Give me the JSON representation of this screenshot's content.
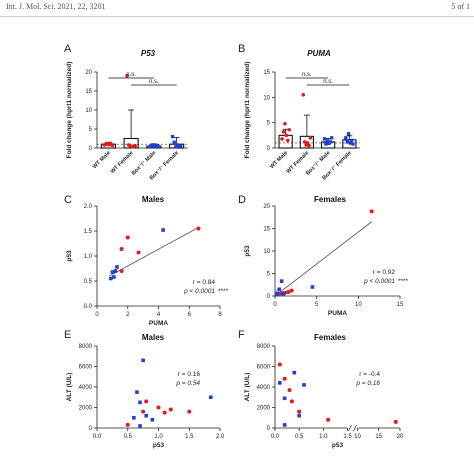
{
  "page_header": {
    "journal": "Int. J. Mol. Sci. 2021, 22, 3201",
    "page": "5 of 1"
  },
  "panels": {
    "A": {
      "letter": "A",
      "title": "P53"
    },
    "B": {
      "letter": "B",
      "title": "PUMA"
    },
    "C": {
      "letter": "C",
      "title": "Males"
    },
    "D": {
      "letter": "D",
      "title": "Females"
    },
    "E": {
      "letter": "E",
      "title": "Males"
    },
    "F": {
      "letter": "F",
      "title": "Females"
    }
  },
  "colors": {
    "male_wt": "#e31a1c",
    "female_wt": "#e31a1c",
    "male_box": "#1f3fd6",
    "female_box": "#1f3fd6",
    "line": "#555555"
  },
  "chart_data": [
    {
      "id": "A",
      "type": "bar",
      "title": "P53",
      "ylabel": "Fold change (hprt1 normalized)",
      "ylim": [
        0,
        20
      ],
      "yticks": [
        0,
        5,
        10,
        15,
        20
      ],
      "categories": [
        "WT Male",
        "WT Female",
        "Box⁻/⁻ Male",
        "Box⁻/⁻ Female"
      ],
      "values": [
        1.0,
        2.5,
        0.5,
        1.0
      ],
      "errors": [
        0.5,
        7.5,
        0.6,
        1.8
      ],
      "points": [
        [
          0.8,
          1.0,
          1.1,
          0.9,
          1.2,
          0.7
        ],
        [
          19,
          0.8,
          0.5,
          0.4,
          0.3,
          0.6
        ],
        [
          0.3,
          0.6,
          0.8,
          0.4,
          0.7,
          0.5
        ],
        [
          3,
          1.5,
          0.3,
          0.8,
          0.6,
          0.5
        ]
      ],
      "sig_labels": [
        "n.s.",
        "n.s."
      ]
    },
    {
      "id": "B",
      "type": "bar",
      "title": "PUMA",
      "ylabel": "Fold change (hprt1 normalized)",
      "ylim": [
        0,
        15
      ],
      "yticks": [
        0,
        5,
        10,
        15
      ],
      "categories": [
        "WT Male",
        "WT Female",
        "Box⁻/⁻ Male",
        "Box⁻/⁻ Female"
      ],
      "values": [
        2.5,
        2.3,
        1.2,
        1.6
      ],
      "errors": [
        1.2,
        4.2,
        0.7,
        0.8
      ],
      "points": [
        [
          1.8,
          3.2,
          4.8,
          2.5,
          1.5,
          3.6
        ],
        [
          10.5,
          1.2,
          0.6,
          1.0,
          0.5,
          2.0
        ],
        [
          1.8,
          0.8,
          1.4,
          0.9,
          1.2,
          2.0
        ],
        [
          2.0,
          1.2,
          2.8,
          1.0,
          1.5,
          0.8
        ]
      ],
      "sig_labels": [
        "n.s.",
        "n.s."
      ]
    },
    {
      "id": "C",
      "type": "scatter",
      "title": "Males",
      "xlabel": "PUMA",
      "ylabel": "p53",
      "xlim": [
        0,
        8
      ],
      "ylim": [
        0.0,
        2.0
      ],
      "xticks": [
        0,
        2,
        4,
        6,
        8
      ],
      "yticks": [
        "0.0",
        "0.5",
        "1.0",
        "1.5",
        "2.0"
      ],
      "red": [
        [
          1.6,
          1.14
        ],
        [
          2.0,
          1.37
        ],
        [
          2.7,
          1.07
        ],
        [
          6.6,
          1.55
        ],
        [
          1.6,
          0.7
        ]
      ],
      "blue": [
        [
          0.9,
          0.55
        ],
        [
          1.0,
          0.68
        ],
        [
          1.1,
          0.58
        ],
        [
          1.2,
          0.7
        ],
        [
          1.3,
          0.78
        ],
        [
          4.3,
          1.52
        ]
      ],
      "fit": [
        [
          0.8,
          0.6
        ],
        [
          6.6,
          1.57
        ]
      ],
      "r_text": "r = 0.84",
      "p_text": "p < 0.0001",
      "p_stars": "****"
    },
    {
      "id": "D",
      "type": "scatter",
      "title": "Females",
      "xlabel": "PUMA",
      "ylabel": "p53",
      "xlim": [
        0,
        15
      ],
      "ylim": [
        0,
        20
      ],
      "xticks": [
        0,
        5,
        10,
        15
      ],
      "yticks": [
        "0",
        "5",
        "10",
        "15",
        "20"
      ],
      "red": [
        [
          11.6,
          18.8
        ],
        [
          0.8,
          0.6
        ],
        [
          1.2,
          0.7
        ],
        [
          1.6,
          0.9
        ],
        [
          2.0,
          1.2
        ],
        [
          0.5,
          0.4
        ]
      ],
      "blue": [
        [
          0.3,
          0.6
        ],
        [
          0.5,
          1.5
        ],
        [
          0.8,
          3.3
        ],
        [
          1.0,
          0.5
        ],
        [
          4.5,
          2.0
        ],
        [
          0.2,
          0.3
        ]
      ],
      "fit": [
        [
          0.0,
          0.0
        ],
        [
          11.6,
          16.5
        ]
      ],
      "r_text": "r = 0.92",
      "p_text": "p < 0.0001",
      "p_stars": "****"
    },
    {
      "id": "E",
      "type": "scatter",
      "title": "Males",
      "xlabel": "p53",
      "ylabel": "ALT (U/L)",
      "xlim": [
        0,
        2.0
      ],
      "ylim": [
        0,
        8000
      ],
      "xticks": [
        "0.0",
        "0.5",
        "1.0",
        "1.5",
        "2.0"
      ],
      "yticks": [
        "0",
        "2000",
        "4000",
        "6000",
        "8000"
      ],
      "red": [
        [
          0.8,
          2600
        ],
        [
          0.75,
          1600
        ],
        [
          1.0,
          2000
        ],
        [
          1.1,
          1500
        ],
        [
          1.2,
          1800
        ],
        [
          1.5,
          1600
        ],
        [
          0.5,
          300
        ]
      ],
      "blue": [
        [
          0.75,
          6600
        ],
        [
          0.65,
          3500
        ],
        [
          0.7,
          2500
        ],
        [
          0.6,
          1000
        ],
        [
          0.8,
          1200
        ],
        [
          0.9,
          800
        ],
        [
          1.85,
          3000
        ],
        [
          0.7,
          200
        ]
      ],
      "r_text": "r = 0.16",
      "p_text": "p = 0.54"
    },
    {
      "id": "F",
      "type": "scatter",
      "title": "Females",
      "xlabel": "p53",
      "ylabel": "ALT (U/L)",
      "xlim": [
        0,
        20
      ],
      "ylim": [
        0,
        8000
      ],
      "x_break": [
        1.5,
        10
      ],
      "xticks": [
        "0.0",
        "0.5",
        "1.0",
        "1.5",
        "10",
        "15",
        "20"
      ],
      "yticks": [
        "0",
        "2000",
        "4000",
        "6000",
        "8000"
      ],
      "red": [
        [
          0.1,
          6200
        ],
        [
          0.2,
          4800
        ],
        [
          0.3,
          3700
        ],
        [
          0.35,
          2600
        ],
        [
          0.5,
          1600
        ],
        [
          1.1,
          800
        ],
        [
          19.0,
          600
        ]
      ],
      "blue": [
        [
          0.1,
          4400
        ],
        [
          0.2,
          2900
        ],
        [
          0.4,
          5400
        ],
        [
          0.6,
          4200
        ],
        [
          0.5,
          1200
        ],
        [
          0.2,
          300
        ]
      ],
      "r_text": "r = -0.4",
      "p_text": "p = 0.16"
    }
  ]
}
